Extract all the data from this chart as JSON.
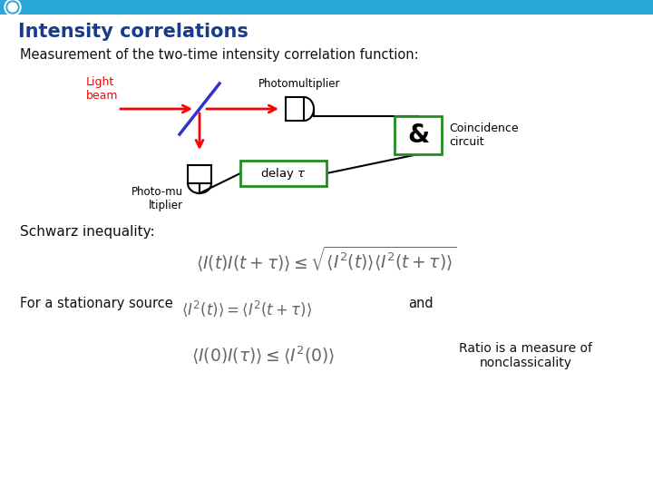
{
  "title": "Intensity correlations",
  "title_color": "#1a3a8a",
  "bg_color": "#ffffff",
  "header_bar_color": "#2aa8d8",
  "subtitle": "Measurement of the two-time intensity correlation function:",
  "schwarz_label": "Schwarz inequality:",
  "stationary_text": "For a stationary source",
  "and_text": "and",
  "ratio_text": "Ratio is a measure of\nnonclassicality",
  "light_beam_color": "#ff0000",
  "beamsplitter_color": "#3333cc",
  "diagram_color": "#000000",
  "box_border_color": "#000000",
  "delay_border_color": "#228b22",
  "and_border_color": "#228b22"
}
